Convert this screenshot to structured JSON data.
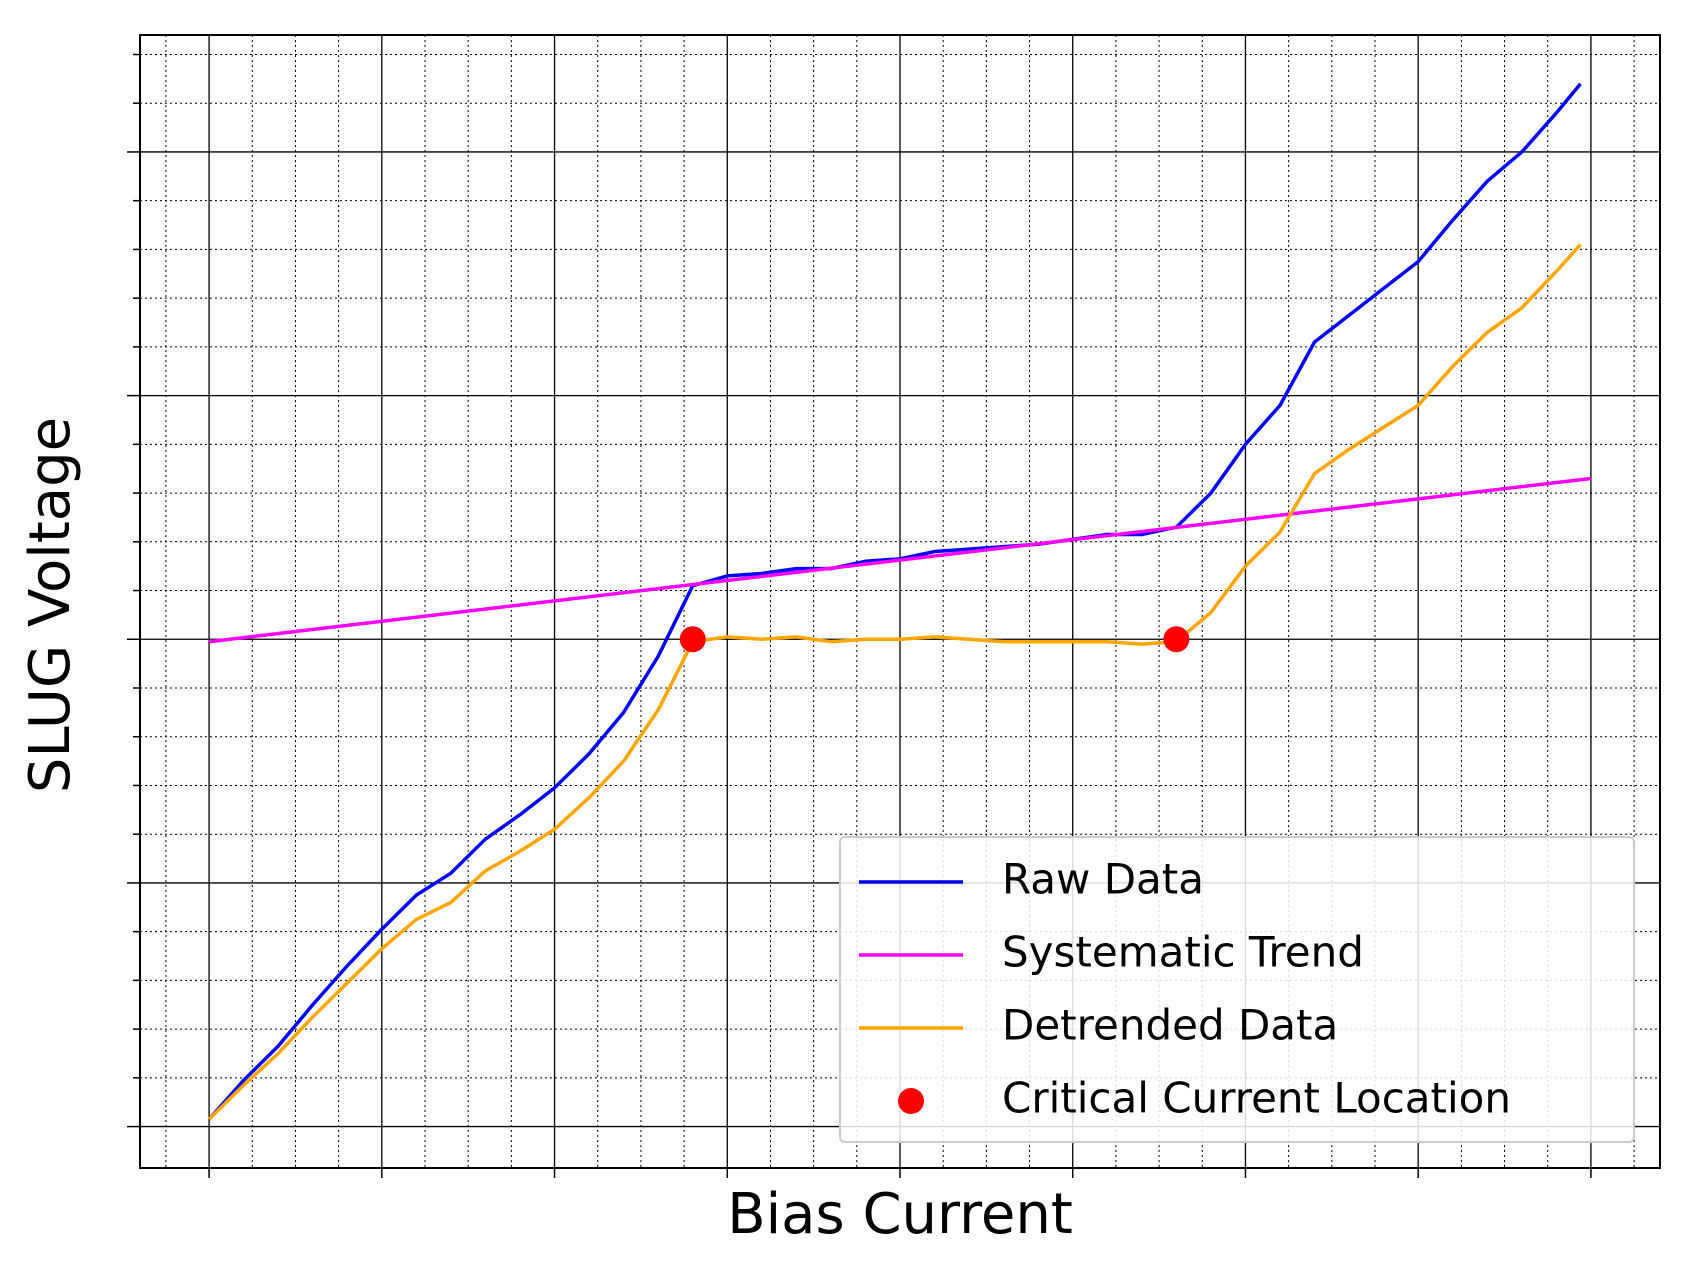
{
  "chart_data": {
    "type": "line",
    "x_label": "Bias Current",
    "y_label": "SLUG Voltage",
    "xlim": [
      -0.4,
      8.4
    ],
    "ylim": [
      -0.17,
      4.48
    ],
    "xticks": [
      0,
      1,
      2,
      3,
      4,
      5,
      6,
      7,
      8
    ],
    "yticks": [
      0,
      1,
      2,
      3,
      4
    ],
    "grid": true,
    "minor_grid": true,
    "legend_loc": "lower right",
    "series": [
      {
        "name": "Raw Data",
        "type": "line",
        "color": "#0000ff",
        "x": [
          0,
          0.2,
          0.4,
          0.6,
          0.8,
          1.0,
          1.2,
          1.4,
          1.6,
          1.8,
          2.0,
          2.2,
          2.4,
          2.6,
          2.8,
          3.0,
          3.2,
          3.4,
          3.6,
          3.8,
          4.0,
          4.2,
          4.4,
          4.6,
          4.8,
          5.0,
          5.2,
          5.4,
          5.6,
          5.8,
          6.0,
          6.2,
          6.4,
          6.6,
          6.8,
          7.0,
          7.2,
          7.4,
          7.6,
          7.8,
          7.94
        ],
        "values": [
          0.03,
          0.19,
          0.33,
          0.5,
          0.66,
          0.81,
          0.95,
          1.04,
          1.18,
          1.28,
          1.39,
          1.53,
          1.7,
          1.93,
          2.22,
          2.26,
          2.27,
          2.29,
          2.29,
          2.32,
          2.33,
          2.36,
          2.37,
          2.38,
          2.39,
          2.41,
          2.43,
          2.43,
          2.46,
          2.6,
          2.8,
          2.96,
          3.22,
          3.33,
          3.44,
          3.55,
          3.72,
          3.88,
          4.0,
          4.16,
          4.28
        ]
      },
      {
        "name": "Systematic Trend",
        "type": "line",
        "color": "#ff00ff",
        "x": [
          0,
          8
        ],
        "values": [
          1.99,
          2.66
        ]
      },
      {
        "name": "Detrended Data",
        "type": "line",
        "color": "#ffa500",
        "x": [
          0,
          0.2,
          0.4,
          0.6,
          0.8,
          1.0,
          1.2,
          1.4,
          1.6,
          1.8,
          2.0,
          2.2,
          2.4,
          2.6,
          2.8,
          3.0,
          3.2,
          3.4,
          3.6,
          3.8,
          4.0,
          4.2,
          4.4,
          4.6,
          4.8,
          5.0,
          5.2,
          5.4,
          5.6,
          5.8,
          6.0,
          6.2,
          6.4,
          6.6,
          6.8,
          7.0,
          7.2,
          7.4,
          7.6,
          7.8,
          7.94
        ],
        "values": [
          0.03,
          0.17,
          0.3,
          0.45,
          0.59,
          0.73,
          0.85,
          0.92,
          1.05,
          1.13,
          1.22,
          1.35,
          1.5,
          1.71,
          1.99,
          2.01,
          2.0,
          2.01,
          1.99,
          2.0,
          2.0,
          2.01,
          2.0,
          1.99,
          1.99,
          1.99,
          1.99,
          1.98,
          1.99,
          2.11,
          2.3,
          2.44,
          2.68,
          2.78,
          2.87,
          2.96,
          3.12,
          3.26,
          3.36,
          3.51,
          3.62
        ]
      },
      {
        "name": "Critical Current Location",
        "type": "scatter",
        "color": "#ff0000",
        "x": [
          2.8,
          5.6
        ],
        "values": [
          2.0,
          2.0
        ]
      }
    ]
  }
}
